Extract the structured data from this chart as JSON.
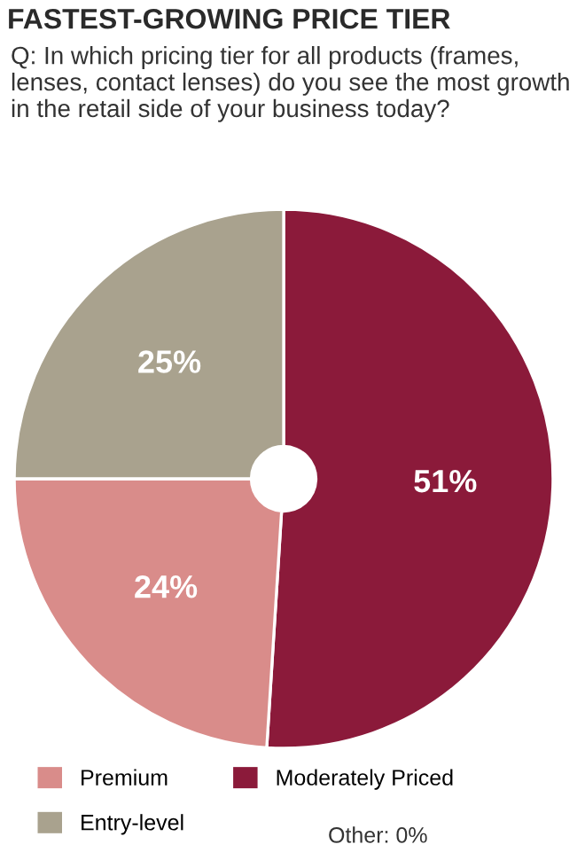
{
  "chart_data": {
    "type": "pie",
    "title": "FASTEST-GROWING PRICE TIER",
    "subtitle": "Q: In which pricing tier for all products (frames, lenses, contact lenses) do you see the most growth in the retail side of your business today?",
    "categories": [
      "Moderately Priced",
      "Premium",
      "Entry-level"
    ],
    "values": [
      51,
      24,
      25
    ],
    "colors": [
      "#8b1a3a",
      "#d98c8a",
      "#a9a28e"
    ],
    "value_labels": [
      "51%",
      "24%",
      "25%"
    ],
    "annotations": [
      "Other: 0%"
    ],
    "legend": "bottom"
  }
}
